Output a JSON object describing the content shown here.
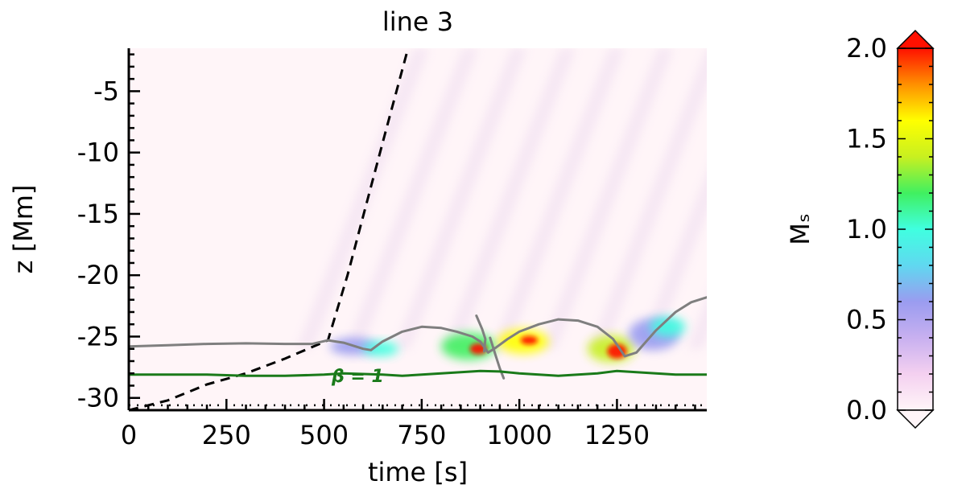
{
  "colors": {
    "dashed_line": "#000000",
    "contour_line": "#7f7f7f",
    "beta_line": "#1a7a1a",
    "background": "#fff5f8"
  },
  "chart_data": {
    "type": "heatmap",
    "title": "line 3",
    "xlabel": "time [s]",
    "ylabel": "z [Mm]",
    "xlim": [
      0,
      1480
    ],
    "ylim": [
      -31,
      -1.5
    ],
    "x_ticks": [
      0,
      250,
      500,
      750,
      1000,
      1250
    ],
    "x_tick_labels": [
      "0",
      "250",
      "500",
      "750",
      "1000",
      "1250"
    ],
    "y_ticks": [
      -30,
      -25,
      -20,
      -15,
      -10,
      -5
    ],
    "y_tick_labels": [
      "-30",
      "-25",
      "-20",
      "-15",
      "-10",
      "-5"
    ],
    "colorbar": {
      "label": "Mₛ",
      "min": 0.0,
      "max": 2.0,
      "ticks": [
        0.0,
        0.5,
        1.0,
        1.5,
        2.0
      ],
      "tick_labels": [
        "0.0",
        "0.5",
        "1.0",
        "1.5",
        "2.0"
      ],
      "colors": [
        "#fff5f8",
        "#f4d0f0",
        "#c8b0f0",
        "#9a9cf0",
        "#60d8f0",
        "#40ffe0",
        "#40f060",
        "#c8f020",
        "#ffff00",
        "#ff9000",
        "#ff1000"
      ]
    },
    "annotations": [
      {
        "text": "β = 1",
        "x": 540,
        "y": -28.1
      }
    ],
    "series": [
      {
        "style": "dashed",
        "color": "#000000",
        "points": [
          [
            0,
            -31
          ],
          [
            100,
            -30.2
          ],
          [
            200,
            -28.9
          ],
          [
            300,
            -28
          ],
          [
            400,
            -26.8
          ],
          [
            510,
            -25.3
          ],
          [
            560,
            -20
          ],
          [
            610,
            -14
          ],
          [
            660,
            -8
          ],
          [
            715,
            -1.5
          ]
        ]
      },
      {
        "style": "solid",
        "color": "#7f7f7f",
        "points": [
          [
            0,
            -25.8
          ],
          [
            100,
            -25.7
          ],
          [
            200,
            -25.6
          ],
          [
            300,
            -25.55
          ],
          [
            400,
            -25.6
          ],
          [
            470,
            -25.6
          ],
          [
            510,
            -25.3
          ],
          [
            550,
            -25.5
          ],
          [
            600,
            -26
          ],
          [
            620,
            -26.1
          ],
          [
            650,
            -25.4
          ],
          [
            700,
            -24.6
          ],
          [
            750,
            -24.2
          ],
          [
            800,
            -24.3
          ],
          [
            840,
            -24.6
          ],
          [
            880,
            -25
          ],
          [
            900,
            -25.4
          ],
          [
            920,
            -26.3
          ],
          [
            940,
            -25.9
          ],
          [
            970,
            -25.2
          ],
          [
            1000,
            -24.6
          ],
          [
            1050,
            -24
          ],
          [
            1100,
            -23.6
          ],
          [
            1150,
            -23.7
          ],
          [
            1200,
            -24.2
          ],
          [
            1240,
            -25.2
          ],
          [
            1270,
            -26.6
          ],
          [
            1300,
            -26.3
          ],
          [
            1350,
            -24.5
          ],
          [
            1400,
            -23
          ],
          [
            1440,
            -22.2
          ],
          [
            1480,
            -21.8
          ]
        ]
      },
      {
        "style": "solid",
        "color": "#7f7f7f",
        "points": [
          [
            890,
            -23.3
          ],
          [
            905,
            -24.4
          ],
          [
            913,
            -25.2
          ],
          [
            910,
            -26.2
          ]
        ]
      },
      {
        "style": "solid",
        "color": "#7f7f7f",
        "points": [
          [
            925,
            -25.1
          ],
          [
            940,
            -26.6
          ],
          [
            950,
            -27.6
          ],
          [
            960,
            -28.4
          ]
        ]
      },
      {
        "style": "solid",
        "color": "#1a7a1a",
        "points": [
          [
            0,
            -28.1
          ],
          [
            100,
            -28.1
          ],
          [
            200,
            -28.1
          ],
          [
            300,
            -28.2
          ],
          [
            400,
            -28.2
          ],
          [
            500,
            -28.1
          ],
          [
            550,
            -28.0
          ],
          [
            600,
            -28.05
          ],
          [
            650,
            -28.1
          ],
          [
            700,
            -28.2
          ],
          [
            750,
            -28.1
          ],
          [
            800,
            -28.0
          ],
          [
            850,
            -27.9
          ],
          [
            900,
            -27.8
          ],
          [
            950,
            -27.85
          ],
          [
            1000,
            -28.0
          ],
          [
            1050,
            -28.1
          ],
          [
            1100,
            -28.2
          ],
          [
            1150,
            -28.1
          ],
          [
            1200,
            -28.0
          ],
          [
            1250,
            -27.8
          ],
          [
            1300,
            -27.9
          ],
          [
            1350,
            -28.0
          ],
          [
            1400,
            -28.1
          ],
          [
            1480,
            -28.1
          ]
        ]
      }
    ],
    "blobs": [
      {
        "t": 575,
        "z": -25.8,
        "rt": 60,
        "rz": 0.7,
        "value": 0.55
      },
      {
        "t": 645,
        "z": -26.0,
        "rt": 45,
        "rz": 0.6,
        "value": 0.9
      },
      {
        "t": 870,
        "z": -25.8,
        "rt": 70,
        "rz": 1.1,
        "value": 1.2
      },
      {
        "t": 895,
        "z": -26.0,
        "rt": 22,
        "rz": 0.45,
        "value": 1.9
      },
      {
        "t": 1010,
        "z": -25.4,
        "rt": 65,
        "rz": 1.0,
        "value": 1.5
      },
      {
        "t": 1025,
        "z": -25.3,
        "rt": 22,
        "rz": 0.35,
        "value": 2.0
      },
      {
        "t": 1235,
        "z": -26.0,
        "rt": 60,
        "rz": 1.1,
        "value": 1.4
      },
      {
        "t": 1250,
        "z": -26.2,
        "rt": 25,
        "rz": 0.6,
        "value": 2.0
      },
      {
        "t": 1345,
        "z": -24.8,
        "rt": 65,
        "rz": 1.3,
        "value": 0.6
      },
      {
        "t": 1380,
        "z": -24.2,
        "rt": 45,
        "rz": 0.8,
        "value": 1.0
      }
    ]
  }
}
